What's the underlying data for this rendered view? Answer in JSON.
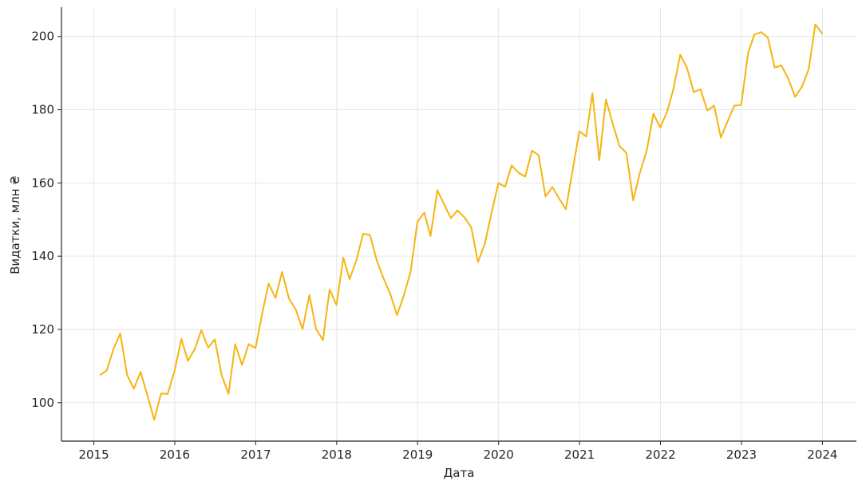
{
  "chart_data": {
    "type": "line",
    "title": "",
    "xlabel": "Дата",
    "ylabel": "Видатки, млн ₴",
    "xlim": [
      2014.6,
      2024.42
    ],
    "ylim": [
      89.5,
      208
    ],
    "x_ticks": [
      2015,
      2016,
      2017,
      2018,
      2019,
      2020,
      2021,
      2022,
      2023,
      2024
    ],
    "y_ticks": [
      100,
      120,
      140,
      160,
      180,
      200
    ],
    "grid": true,
    "legend": "none",
    "line_color": "#f5b50f",
    "series": [
      {
        "x": [
          "2015-01-31",
          "2015-02-28",
          "2015-03-31",
          "2015-04-30",
          "2015-05-31",
          "2015-06-30",
          "2015-07-31",
          "2015-08-31",
          "2015-09-30",
          "2015-10-31",
          "2015-11-30",
          "2015-12-31",
          "2016-01-31",
          "2016-02-29",
          "2016-03-31",
          "2016-04-30",
          "2016-05-31",
          "2016-06-30",
          "2016-07-31",
          "2016-08-31",
          "2016-09-30",
          "2016-10-31",
          "2016-11-30",
          "2016-12-31",
          "2017-01-31",
          "2017-02-28",
          "2017-03-31",
          "2017-04-30",
          "2017-05-31",
          "2017-06-30",
          "2017-07-31",
          "2017-08-31",
          "2017-09-30",
          "2017-10-31",
          "2017-11-30",
          "2017-12-31",
          "2018-01-31",
          "2018-02-28",
          "2018-03-31",
          "2018-04-30",
          "2018-05-31",
          "2018-06-30",
          "2018-07-31",
          "2018-08-31",
          "2018-09-30",
          "2018-10-31",
          "2018-11-30",
          "2018-12-31",
          "2019-01-31",
          "2019-02-28",
          "2019-03-31",
          "2019-04-30",
          "2019-05-31",
          "2019-06-30",
          "2019-07-31",
          "2019-08-31",
          "2019-09-30",
          "2019-10-31",
          "2019-11-30",
          "2019-12-31",
          "2020-01-31",
          "2020-02-29",
          "2020-03-31",
          "2020-04-30",
          "2020-05-31",
          "2020-06-30",
          "2020-07-31",
          "2020-08-31",
          "2020-09-30",
          "2020-10-31",
          "2020-11-30",
          "2020-12-31",
          "2021-01-31",
          "2021-02-28",
          "2021-03-31",
          "2021-04-30",
          "2021-05-31",
          "2021-06-30",
          "2021-07-31",
          "2021-08-31",
          "2021-09-30",
          "2021-10-31",
          "2021-11-30",
          "2021-12-31",
          "2022-01-31",
          "2022-02-28",
          "2022-03-31",
          "2022-04-30",
          "2022-05-31",
          "2022-06-30",
          "2022-07-31",
          "2022-08-31",
          "2022-09-30",
          "2022-10-31",
          "2022-11-30",
          "2022-12-31",
          "2023-01-31",
          "2023-02-28",
          "2023-03-31",
          "2023-04-30",
          "2023-05-31",
          "2023-06-30",
          "2023-07-31",
          "2023-08-31",
          "2023-09-30",
          "2023-10-31",
          "2023-11-30",
          "2023-12-31"
        ],
        "y": [
          107.6,
          108.8,
          114.7,
          118.9,
          107.6,
          103.8,
          108.4,
          101.9,
          95.3,
          102.5,
          102.4,
          108.7,
          117.4,
          111.4,
          114.6,
          119.8,
          115.0,
          117.3,
          107.5,
          102.4,
          116.0,
          110.3,
          116.0,
          114.9,
          124.6,
          132.5,
          128.6,
          135.7,
          128.4,
          125.5,
          120.1,
          129.4,
          120.1,
          117.1,
          130.9,
          126.7,
          139.6,
          133.7,
          138.9,
          146.1,
          145.8,
          139.0,
          134.0,
          129.6,
          123.9,
          129.3,
          135.7,
          149.4,
          151.9,
          145.5,
          158.0,
          154.2,
          150.4,
          152.5,
          150.6,
          147.8,
          138.4,
          143.4,
          151.8,
          159.9,
          159.0,
          164.8,
          162.8,
          161.7,
          168.8,
          167.6,
          156.3,
          158.9,
          155.8,
          152.8,
          163.2,
          174.1,
          172.7,
          184.5,
          166.2,
          182.8,
          176.1,
          170.1,
          168.2,
          155.2,
          162.8,
          168.8,
          178.9,
          175.1,
          179.5,
          185.6,
          195.0,
          191.5,
          184.8,
          185.6,
          179.8,
          181.1,
          172.4,
          176.9,
          181.1,
          181.3,
          195.5,
          200.5,
          201.2,
          199.7,
          191.5,
          192.1,
          188.5,
          183.5,
          186.2,
          191.0,
          203.3,
          200.8
        ]
      }
    ]
  }
}
